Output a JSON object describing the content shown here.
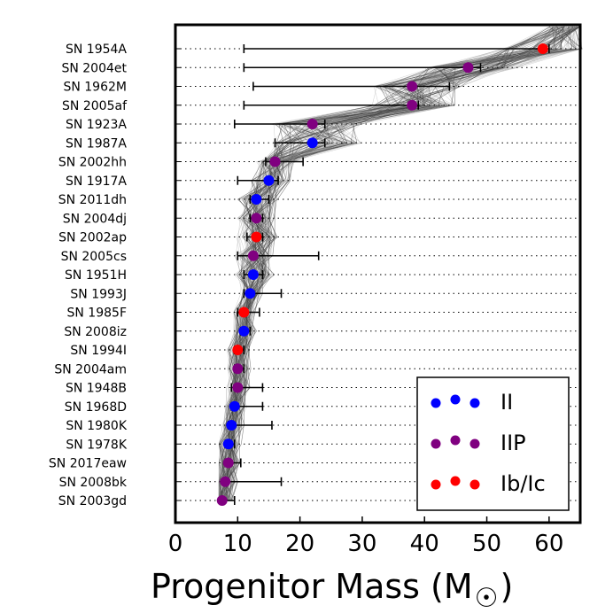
{
  "chart_data": {
    "type": "scatter",
    "xlabel": "Progenitor Mass (M",
    "xlabel_symbol": "☉",
    "xlabel_close": ")",
    "xlim": [
      0,
      65
    ],
    "xticks": [
      0,
      10,
      20,
      30,
      40,
      50,
      60
    ],
    "grid": "dotted horizontal",
    "legend_position": "bottom-right",
    "series": [
      {
        "name": "II",
        "color": "#0000ff"
      },
      {
        "name": "IIP",
        "color": "#800080"
      },
      {
        "name": "Ib/Ic",
        "color": "#ff0000"
      }
    ],
    "points": [
      {
        "label": "SN 1954A",
        "type": "Ib/Ic",
        "mass": 59,
        "lo": 11,
        "hi": 60
      },
      {
        "label": "SN 2004et",
        "type": "IIP",
        "mass": 47,
        "lo": 11,
        "hi": 49
      },
      {
        "label": "SN 1962M",
        "type": "IIP",
        "mass": 38,
        "lo": 12.5,
        "hi": 44
      },
      {
        "label": "SN 2005af",
        "type": "IIP",
        "mass": 38,
        "lo": 11,
        "hi": 39
      },
      {
        "label": "SN 1923A",
        "type": "IIP",
        "mass": 22,
        "lo": 9.5,
        "hi": 24
      },
      {
        "label": "SN 1987A",
        "type": "II",
        "mass": 22,
        "lo": 16,
        "hi": 24
      },
      {
        "label": "SN 2002hh",
        "type": "IIP",
        "mass": 16,
        "lo": 14.5,
        "hi": 20.5
      },
      {
        "label": "SN 1917A",
        "type": "II",
        "mass": 15,
        "lo": 10,
        "hi": 16.5
      },
      {
        "label": "SN 2011dh",
        "type": "II",
        "mass": 13,
        "lo": 12,
        "hi": 15
      },
      {
        "label": "SN 2004dj",
        "type": "IIP",
        "mass": 13,
        "lo": 12,
        "hi": 14
      },
      {
        "label": "SN 2002ap",
        "type": "Ib/Ic",
        "mass": 13,
        "lo": 11.5,
        "hi": 14
      },
      {
        "label": "SN 2005cs",
        "type": "IIP",
        "mass": 12.5,
        "lo": 10,
        "hi": 23
      },
      {
        "label": "SN 1951H",
        "type": "II",
        "mass": 12.5,
        "lo": 11,
        "hi": 14
      },
      {
        "label": "SN 1993J",
        "type": "II",
        "mass": 12,
        "lo": 11,
        "hi": 17
      },
      {
        "label": "SN 1985F",
        "type": "Ib/Ic",
        "mass": 11,
        "lo": 10,
        "hi": 13.5
      },
      {
        "label": "SN 2008iz",
        "type": "II",
        "mass": 11,
        "lo": 10.5,
        "hi": 12
      },
      {
        "label": "SN 1994I",
        "type": "Ib/Ic",
        "mass": 10,
        "lo": 9.5,
        "hi": 11
      },
      {
        "label": "SN 2004am",
        "type": "IIP",
        "mass": 10,
        "lo": 9.5,
        "hi": 11
      },
      {
        "label": "SN 1948B",
        "type": "IIP",
        "mass": 10,
        "lo": 9,
        "hi": 14
      },
      {
        "label": "SN 1968D",
        "type": "II",
        "mass": 9.5,
        "lo": 9,
        "hi": 14
      },
      {
        "label": "SN 1980K",
        "type": "II",
        "mass": 9,
        "lo": 8.5,
        "hi": 15.5
      },
      {
        "label": "SN 1978K",
        "type": "II",
        "mass": 8.5,
        "lo": 8,
        "hi": 9.5
      },
      {
        "label": "SN 2017eaw",
        "type": "IIP",
        "mass": 8.5,
        "lo": 8,
        "hi": 10.5
      },
      {
        "label": "SN 2008bk",
        "type": "IIP",
        "mass": 8,
        "lo": 8,
        "hi": 17
      },
      {
        "label": "SN 2003gd",
        "type": "IIP",
        "mass": 7.5,
        "lo": 7.5,
        "hi": 9.5
      }
    ]
  }
}
